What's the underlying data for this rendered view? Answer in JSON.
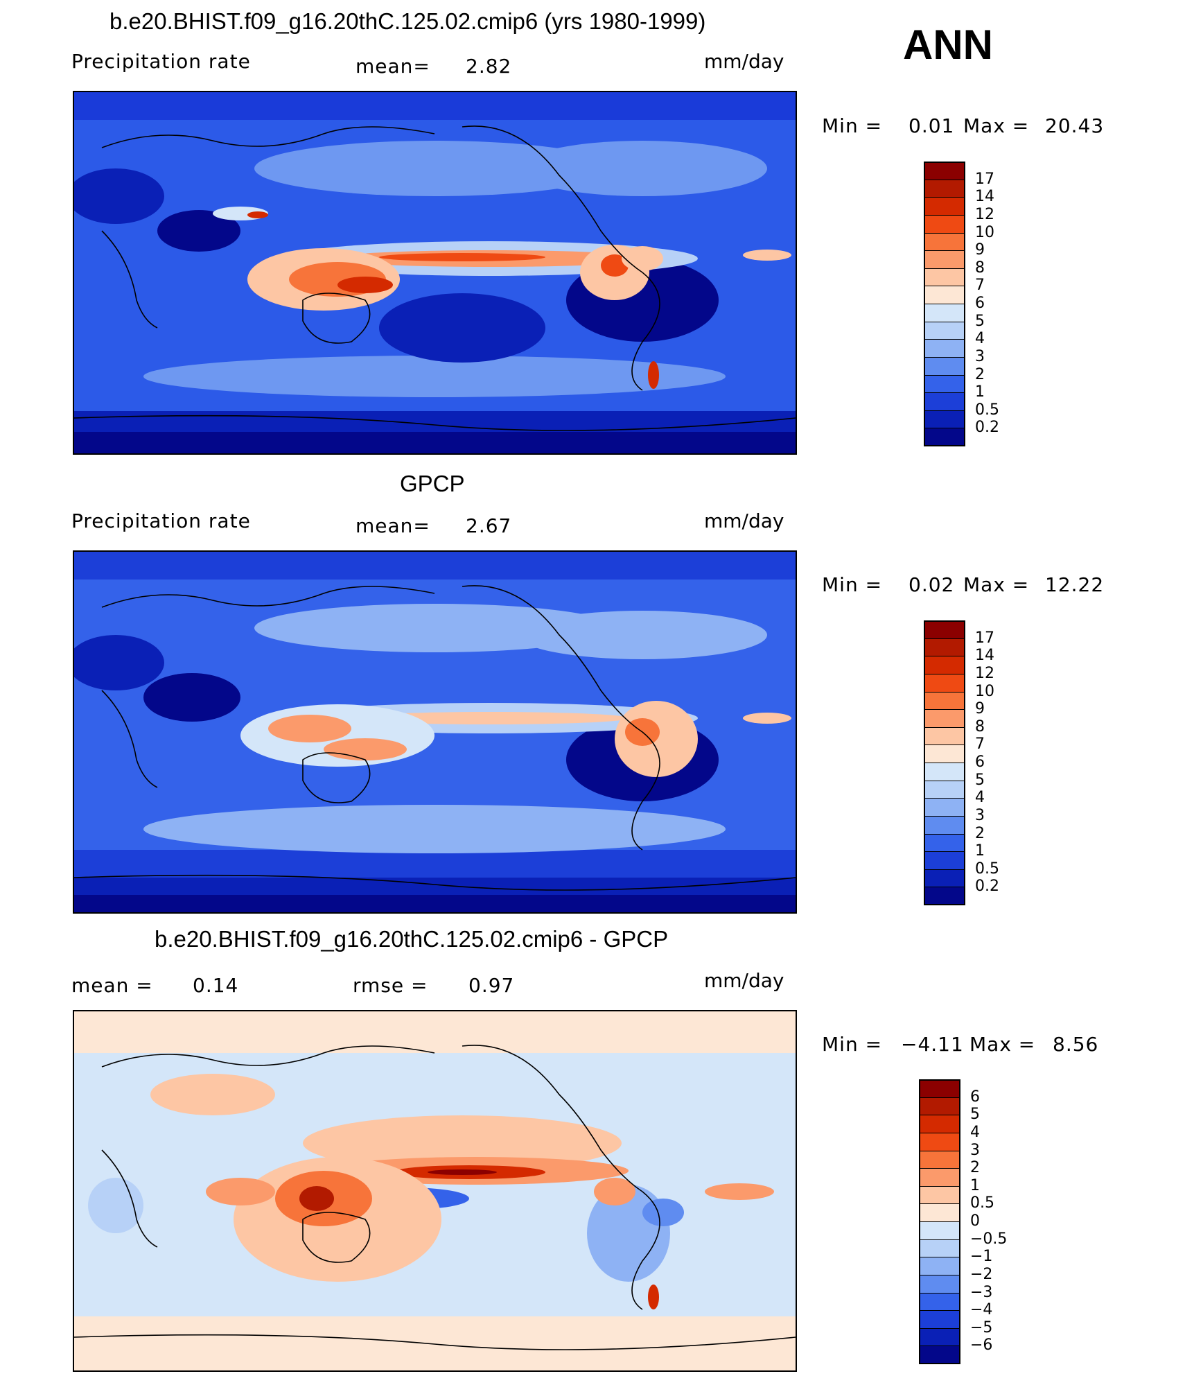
{
  "season": "ANN",
  "panels": [
    {
      "title": "b.e20.BHIST.f09_g16.20thC.125.02.cmip6 (yrs 1980-1999)",
      "left_label": "Precipitation  rate",
      "mean_label": "mean=",
      "mean_value": "2.82",
      "units": "mm/day",
      "minmax": {
        "min_label": "Min  =",
        "min_value": "0.01",
        "max_label": "Max  =",
        "max_value": "20.43"
      },
      "colorbar_labels": [
        "17",
        "14",
        "12",
        "10",
        "9",
        "8",
        "7",
        "6",
        "5",
        "4",
        "3",
        "2",
        "1",
        "0.5",
        "0.2"
      ],
      "colorbar_colors": [
        "#8b0000",
        "#b21a00",
        "#d42a00",
        "#ef4a13",
        "#f7743a",
        "#fb9a6b",
        "#fdc6a4",
        "#fde7d5",
        "#d4e6f9",
        "#b7d1f7",
        "#8eb2f4",
        "#5f8cf0",
        "#3462ea",
        "#1c3fd8",
        "#0a20b6",
        "#03078a"
      ]
    },
    {
      "title": "GPCP",
      "left_label": "Precipitation  rate",
      "mean_label": "mean=",
      "mean_value": "2.67",
      "units": "mm/day",
      "minmax": {
        "min_label": "Min  =",
        "min_value": "0.02",
        "max_label": "Max  =",
        "max_value": "12.22"
      },
      "colorbar_labels": [
        "17",
        "14",
        "12",
        "10",
        "9",
        "8",
        "7",
        "6",
        "5",
        "4",
        "3",
        "2",
        "1",
        "0.5",
        "0.2"
      ],
      "colorbar_colors": [
        "#8b0000",
        "#b21a00",
        "#d42a00",
        "#ef4a13",
        "#f7743a",
        "#fb9a6b",
        "#fdc6a4",
        "#fde7d5",
        "#d4e6f9",
        "#b7d1f7",
        "#8eb2f4",
        "#5f8cf0",
        "#3462ea",
        "#1c3fd8",
        "#0a20b6",
        "#03078a"
      ]
    },
    {
      "title": "b.e20.BHIST.f09_g16.20thC.125.02.cmip6 - GPCP",
      "left_label": "mean  =",
      "mean_label": "rmse  =",
      "left_value": "0.14",
      "mean_value": "0.97",
      "units": "mm/day",
      "minmax": {
        "min_label": "Min  =",
        "min_value": "−4.11",
        "max_label": "Max  =",
        "max_value": "8.56"
      },
      "colorbar_labels": [
        "6",
        "5",
        "4",
        "3",
        "2",
        "1",
        "0.5",
        "0",
        "−0.5",
        "−1",
        "−2",
        "−3",
        "−4",
        "−5",
        "−6"
      ],
      "colorbar_colors": [
        "#8b0000",
        "#b21a00",
        "#d42a00",
        "#ef4a13",
        "#f7743a",
        "#fb9a6b",
        "#fdc6a4",
        "#fde7d5",
        "#d4e6f9",
        "#b7d1f7",
        "#8eb2f4",
        "#5f8cf0",
        "#3462ea",
        "#1c3fd8",
        "#0a20b6",
        "#03078a"
      ]
    }
  ]
}
